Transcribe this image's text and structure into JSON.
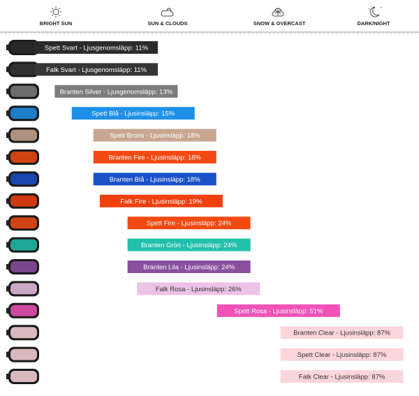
{
  "chart_data": {
    "type": "bar",
    "conditions": [
      "BRIGHT SUN",
      "SUN & CLOUDS",
      "SNOW & OVERCAST",
      "DARK/NIGHT"
    ],
    "values": [
      11,
      11,
      13,
      15,
      18,
      18,
      18,
      19,
      24,
      24,
      24,
      26,
      51,
      87,
      87,
      87
    ],
    "value_labels": [
      "Spett Svart - Ljusgenomsläpp: 11%",
      "Falk Svart - Ljusgenomsläpp: 11%",
      "Branten Silver - Ljusgenomsläpp: 13%",
      "Spett Blå - Ljusinsläpp: 15%",
      "Spett Brons - Ljusinsläpp: 18%",
      "Branten Fire - Ljusinsläpp: 18%",
      "Branten Blå - Ljusinsläpp: 18%",
      "Falk Fire - Ljusinsläpp: 19%",
      "Spett Fire - Ljusinsläpp: 24%",
      "Branten Grön - Ljusinsläpp: 24%",
      "Branten Lila - Ljusinsläpp: 24%",
      "Falk Rosa - Ljusinsläpp: 26%",
      "Spett Rosa - Ljusinsläpp: 51%",
      "Branten Clear - Ljusinsläpp: 87%",
      "Spett Clear - Ljusinsläpp: 87%",
      "Falk Clear - Ljusinsläpp: 87%"
    ],
    "colors": [
      "#2b2b2b",
      "#363636",
      "#7c7c7c",
      "#1e90e8",
      "#c9a690",
      "#f24a12",
      "#1a50c8",
      "#f0400e",
      "#f24a12",
      "#22c0aa",
      "#8a50a0",
      "#ecc2e6",
      "#f052b8",
      "#fbd6dc",
      "#fbd6dc",
      "#fbd6dc"
    ],
    "text_colors": [
      "#ffffff",
      "#ffffff",
      "#ffffff",
      "#ffffff",
      "#ffffff",
      "#ffffff",
      "#ffffff",
      "#ffffff",
      "#ffffff",
      "#ffffff",
      "#ffffff",
      "#333333",
      "#ffffff",
      "#333333",
      "#333333",
      "#333333"
    ],
    "log_scale": true
  }
}
